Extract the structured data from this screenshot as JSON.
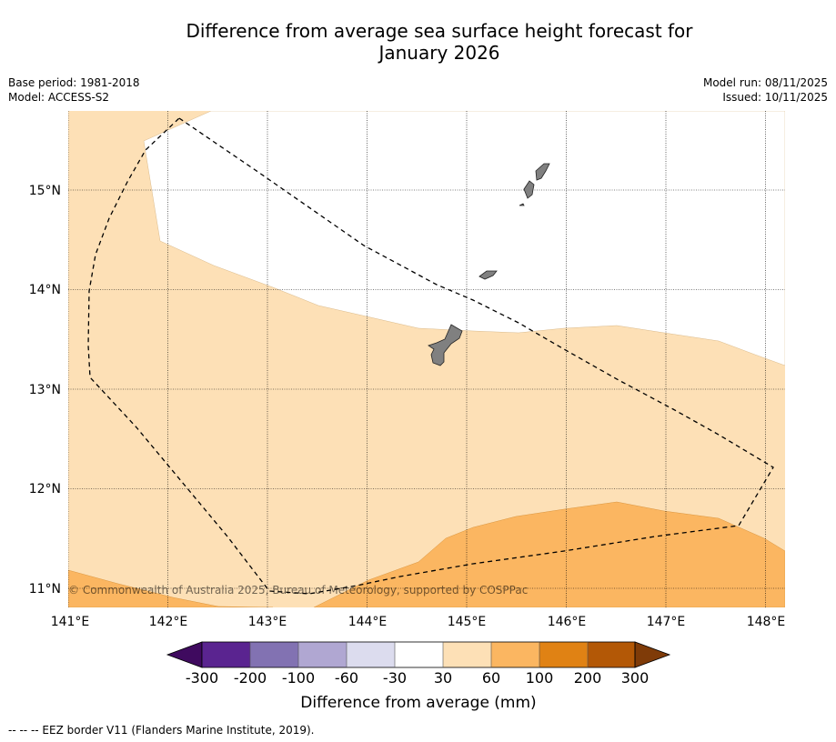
{
  "title_line1": "Difference from average sea surface height forecast for",
  "title_line2": "January 2026",
  "base_period": "Base period: 1981-2018",
  "model": "Model: ACCESS-S2",
  "model_run": "Model run: 08/11/2025",
  "issued": "Issued: 10/11/2025",
  "copyright": "© Commonwealth of Australia 2025, Bureau of Meteorology, supported by COSPPac",
  "footnote": "--  --  -- EEZ border V11 (Flanders Marine Institute, 2019).",
  "lon_ticks": [
    "141°E",
    "142°E",
    "143°E",
    "144°E",
    "145°E",
    "146°E",
    "147°E",
    "148°E"
  ],
  "lat_ticks": [
    "15°N",
    "14°N",
    "13°N",
    "12°N",
    "11°N"
  ],
  "colorbar": {
    "label": "Difference from average (mm)",
    "ticks": [
      "-300",
      "-200",
      "-100",
      "-60",
      "-30",
      "30",
      "60",
      "100",
      "200",
      "300"
    ],
    "colors": [
      "#3f0a5f",
      "#5a2490",
      "#8272b2",
      "#b0a7d2",
      "#dcdcee",
      "#ffffff",
      "#fde0b6",
      "#fbb661",
      "#e08214",
      "#b35806",
      "#7f3b08"
    ]
  },
  "fills": {
    "light_orange": "#fde0b6",
    "medium_orange": "#fbb661",
    "land": "#808080"
  }
}
